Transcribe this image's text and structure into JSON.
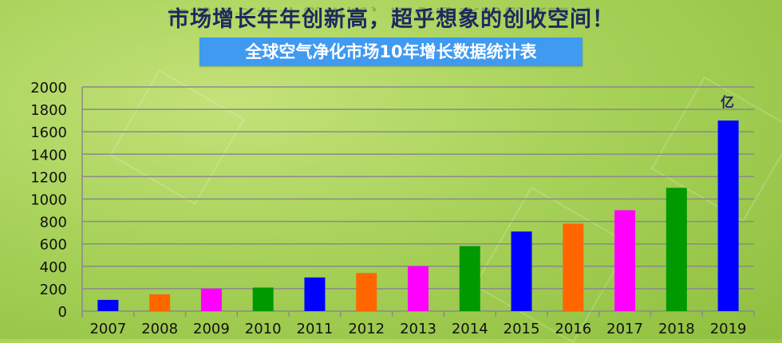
{
  "header": {
    "title": "市场增长年年创新高，超乎想象的创收空间！",
    "subtitle": "全球空气净化市场10年增长数据统计表"
  },
  "chart_data": {
    "type": "bar",
    "title": "全球空气净化市场10年增长数据统计表",
    "xlabel": "",
    "ylabel": "",
    "unit_label": "亿",
    "categories": [
      "2007",
      "2008",
      "2009",
      "2010",
      "2011",
      "2012",
      "2013",
      "2014",
      "2015",
      "2016",
      "2017",
      "2018",
      "2019"
    ],
    "values": [
      100,
      150,
      200,
      210,
      300,
      340,
      400,
      580,
      710,
      780,
      900,
      1100,
      1700
    ],
    "colors": [
      "#0000ff",
      "#ff6600",
      "#ff00ff",
      "#009900",
      "#0000ff",
      "#ff6600",
      "#ff00ff",
      "#009900",
      "#0000ff",
      "#ff6600",
      "#ff00ff",
      "#009900",
      "#0000ff"
    ],
    "ylim": [
      0,
      2000
    ],
    "yticks": [
      0,
      200,
      400,
      600,
      800,
      1000,
      1200,
      1400,
      1600,
      1800,
      2000
    ],
    "grid": true,
    "legend": "none"
  }
}
